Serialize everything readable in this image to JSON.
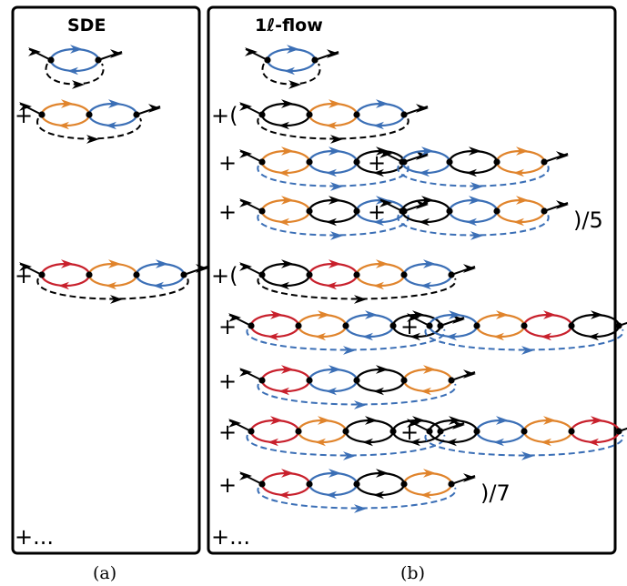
{
  "colors": {
    "black": "#000000",
    "blue": "#3b6fb6",
    "orange": "#e0842c",
    "red": "#c8202c",
    "panel_border": "#000000"
  },
  "panel_a": {
    "title": "SDE",
    "caption": "(a)",
    "ellipsis": "+...",
    "terms": [
      {
        "op": "",
        "loops": [
          "blue"
        ],
        "arc_color": "black"
      },
      {
        "op": "+",
        "loops": [
          "orange",
          "blue"
        ],
        "arc_color": "black"
      },
      {
        "op": "+",
        "loops": [
          "red",
          "orange",
          "blue"
        ],
        "arc_color": "black"
      }
    ]
  },
  "panel_b": {
    "title": "1ℓ-flow",
    "caption": "(b)",
    "ellipsis": "+...",
    "terms": [
      {
        "op": "",
        "loops": [
          "blue"
        ],
        "arc_color": "black"
      },
      {
        "op": "+(",
        "loops": [
          "black",
          "orange",
          "blue"
        ],
        "arc_color": "black"
      },
      {
        "op": "+",
        "loops": [
          "orange",
          "blue",
          "black"
        ],
        "arc_color": "blue"
      },
      {
        "op": "+",
        "loops": [
          "blue",
          "black",
          "orange"
        ],
        "arc_color": "blue"
      },
      {
        "op": "+",
        "loops": [
          "orange",
          "black",
          "blue"
        ],
        "arc_color": "blue"
      },
      {
        "op": "+",
        "loops": [
          "black",
          "blue",
          "orange"
        ],
        "arc_color": "blue",
        "suffix": ")/5"
      },
      {
        "op": "+(",
        "loops": [
          "black",
          "red",
          "orange",
          "blue"
        ],
        "arc_color": "black"
      },
      {
        "op": "+",
        "loops": [
          "red",
          "orange",
          "blue",
          "black"
        ],
        "arc_color": "blue"
      },
      {
        "op": "+",
        "loops": [
          "blue",
          "orange",
          "red",
          "black"
        ],
        "arc_color": "blue"
      },
      {
        "op": "+",
        "loops": [
          "red",
          "blue",
          "black",
          "orange"
        ],
        "arc_color": "blue"
      },
      {
        "op": "+",
        "loops": [
          "red",
          "orange",
          "black",
          "black"
        ],
        "arc_color": "blue"
      },
      {
        "op": "+",
        "loops": [
          "black",
          "blue",
          "orange",
          "red"
        ],
        "arc_color": "blue"
      },
      {
        "op": "+",
        "loops": [
          "red",
          "blue",
          "black",
          "orange"
        ],
        "arc_color": "blue",
        "suffix": ")/7"
      }
    ]
  }
}
